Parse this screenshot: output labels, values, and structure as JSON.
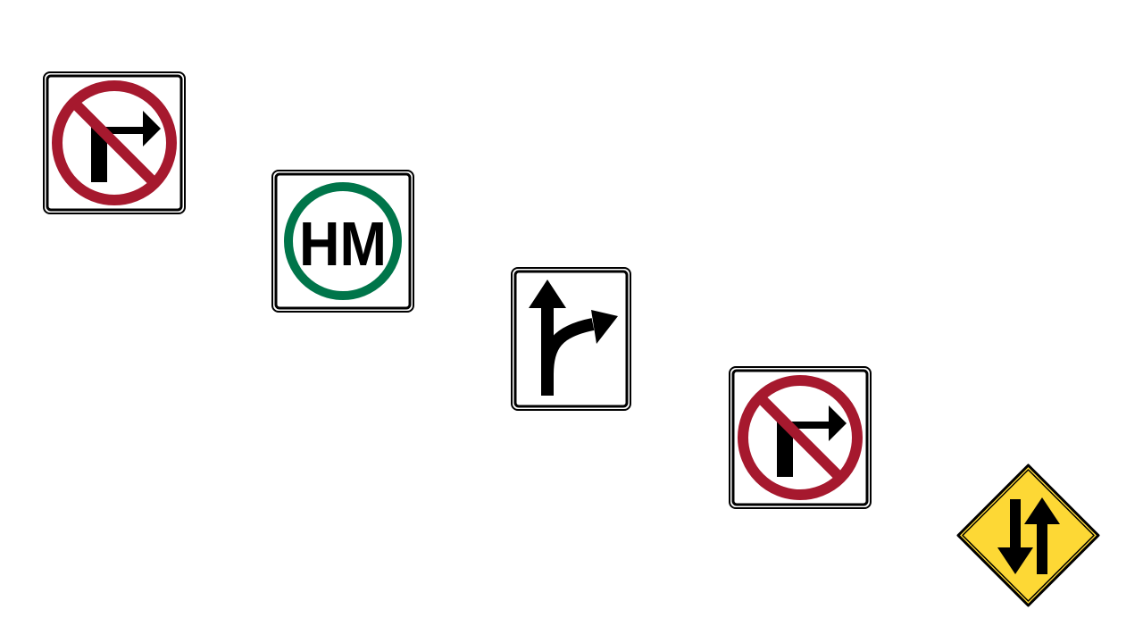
{
  "signs": [
    {
      "id": "no-right-turn-1",
      "icon": "no-right-turn-icon",
      "colors": {
        "prohibition": "#a6192e",
        "symbol": "#000000",
        "background": "#ffffff"
      }
    },
    {
      "id": "hm",
      "icon": "hazmat-route-icon",
      "text": "HM",
      "colors": {
        "ring": "#00754a",
        "text": "#000000",
        "background": "#ffffff"
      }
    },
    {
      "id": "straight-right",
      "icon": "straight-or-right-arrow-icon",
      "colors": {
        "symbol": "#000000",
        "background": "#ffffff"
      }
    },
    {
      "id": "no-right-turn-2",
      "icon": "no-right-turn-icon",
      "colors": {
        "prohibition": "#a6192e",
        "symbol": "#000000",
        "background": "#ffffff"
      }
    },
    {
      "id": "two-way",
      "icon": "two-way-traffic-icon",
      "colors": {
        "background": "#fdd835",
        "symbol": "#000000"
      }
    }
  ]
}
